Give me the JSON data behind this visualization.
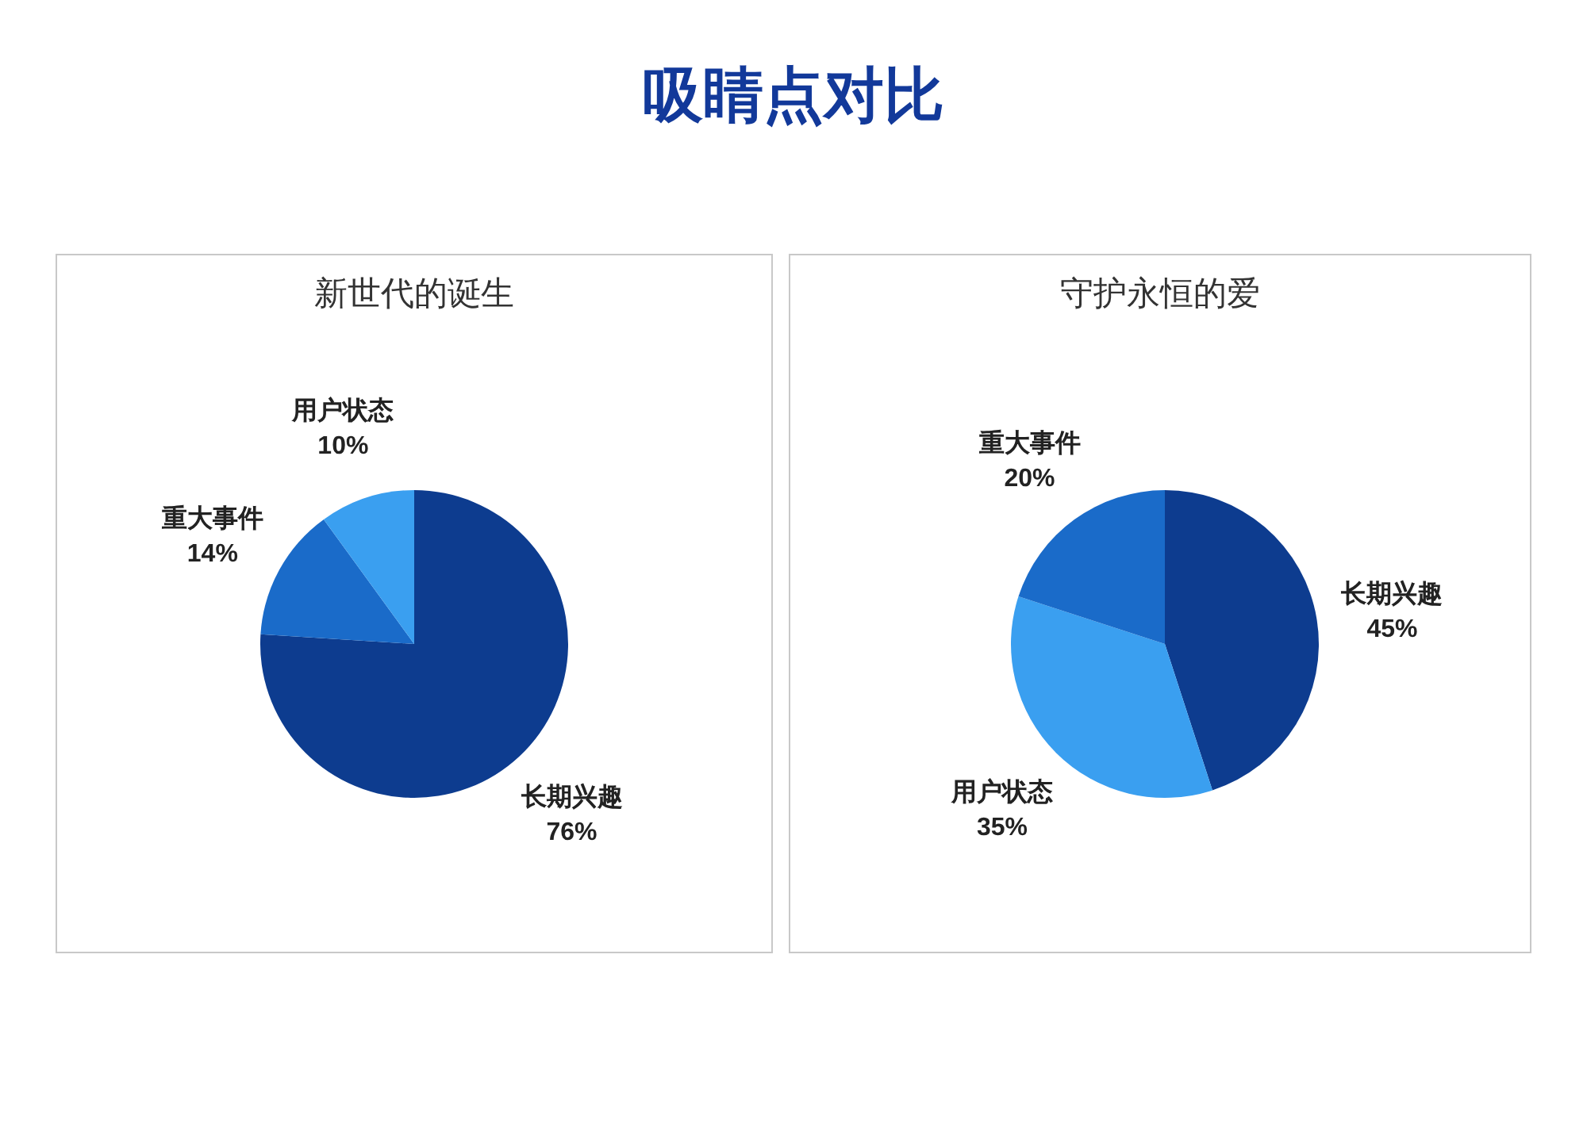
{
  "chart_data": [
    {
      "type": "other",
      "title": "吸睛点对比"
    },
    {
      "type": "pie",
      "title": "新世代的诞生",
      "categories": [
        "长期兴趣",
        "重大事件",
        "用户状态"
      ],
      "values": [
        76,
        14,
        10
      ],
      "colors": [
        "#0d3c8f",
        "#1a6bc9",
        "#3a9ff0"
      ],
      "value_labels": [
        "76%",
        "14%",
        "10%"
      ]
    },
    {
      "type": "pie",
      "title": "守护永恒的爱",
      "categories": [
        "长期兴趣",
        "用户状态",
        "重大事件"
      ],
      "values": [
        45,
        35,
        20
      ],
      "colors": [
        "#0d3c8f",
        "#3a9ff0",
        "#1a6bc9"
      ],
      "value_labels": [
        "45%",
        "35%",
        "20%"
      ]
    }
  ]
}
